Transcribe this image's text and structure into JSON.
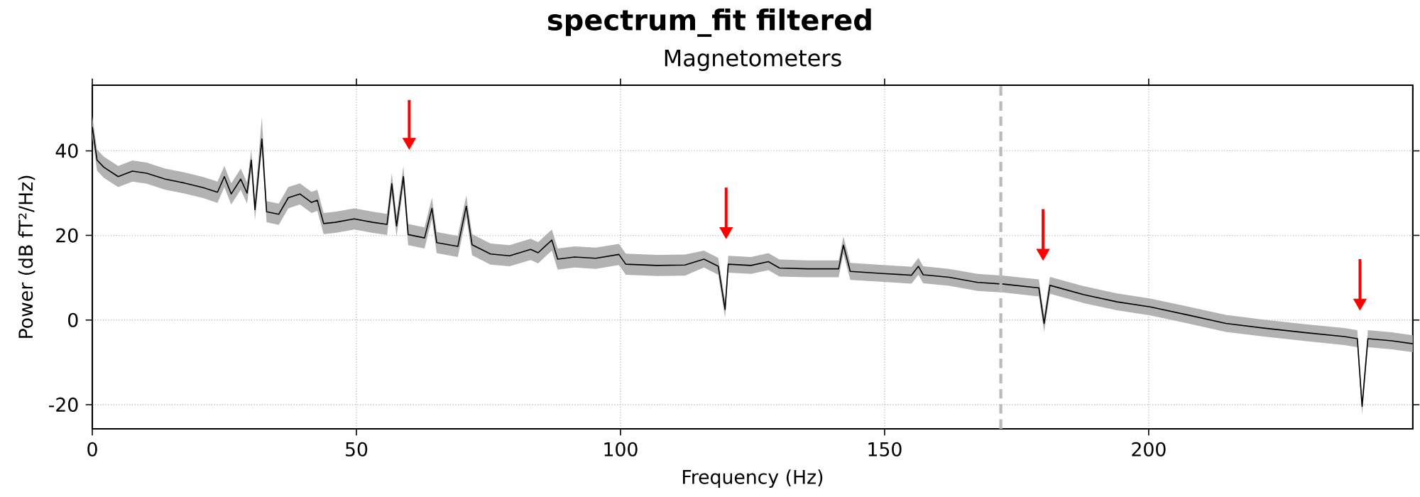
{
  "chart_data": {
    "type": "line",
    "title": "spectrum_fit filtered",
    "subtitle": "Magnetometers",
    "xlabel": "Frequency (Hz)",
    "ylabel": "Power (dB fT²/Hz)",
    "xlim": [
      0,
      250
    ],
    "ylim": [
      -25.7,
      55.5
    ],
    "xticks": [
      0,
      50,
      100,
      150,
      200
    ],
    "yticks": [
      -20,
      0,
      20,
      40
    ],
    "grid": true,
    "series": [
      {
        "color": "#000000",
        "x": [
          0,
          0.9,
          2.2,
          4.9,
          7.6,
          10.3,
          13.8,
          17.4,
          21,
          23.7,
          25,
          26.3,
          28.1,
          29.3,
          30.1,
          30.8,
          32.1,
          33,
          35.3,
          37.1,
          39.3,
          41.5,
          42.6,
          43.8,
          46,
          49.6,
          53.1,
          55.8,
          56.7,
          57.6,
          58.9,
          59.8,
          62.9,
          64.3,
          65.2,
          69.2,
          70.8,
          71.9,
          75.4,
          79,
          83,
          84.4,
          87,
          88.1,
          91.3,
          95.3,
          99.7,
          101,
          106.9,
          112.2,
          115.8,
          118.5,
          119.8,
          120.4,
          124.7,
          128,
          130.1,
          135.4,
          141.3,
          142.2,
          143.5,
          149.7,
          155.1,
          156.4,
          157.3,
          162.2,
          167.6,
          172.5,
          179.2,
          180.2,
          181.3,
          187.7,
          194,
          200.3,
          207.4,
          214.6,
          221.8,
          229.8,
          237,
          239.5,
          240.4,
          241.5,
          246,
          250
        ],
        "values": [
          45.6,
          37.8,
          36.1,
          33.9,
          35.2,
          34.7,
          33.3,
          32.4,
          31.3,
          30.2,
          33.9,
          29.8,
          33.3,
          30,
          37.8,
          26.1,
          42.8,
          25.6,
          25,
          28.9,
          29.8,
          27.8,
          28.3,
          22.8,
          23.1,
          23.9,
          23.1,
          22.6,
          32.2,
          22.2,
          33.9,
          20.2,
          19.4,
          26.4,
          18.3,
          17.4,
          26.9,
          17.8,
          15.6,
          15.2,
          16.7,
          15.9,
          18.9,
          14.4,
          14.9,
          14.6,
          15.5,
          13.2,
          12.9,
          13,
          14.4,
          12.7,
          2.5,
          13.2,
          12.9,
          13.8,
          12.3,
          12.1,
          12.1,
          17.7,
          11.5,
          11,
          10.6,
          12.7,
          10.7,
          10.1,
          8.9,
          8.5,
          7.6,
          -0.8,
          8.2,
          6,
          4.3,
          3.1,
          1.2,
          -0.8,
          -1.9,
          -3,
          -3.9,
          -4.4,
          -20.4,
          -4.4,
          -4.9,
          -5.6
        ],
        "upper": [
          48.1,
          40.3,
          38.6,
          36.4,
          37.7,
          37.2,
          35.8,
          34.9,
          33.8,
          32.7,
          36.4,
          32.3,
          35.8,
          32.5,
          40.3,
          28.6,
          48,
          28.1,
          27.5,
          31.4,
          32.3,
          30.3,
          30.8,
          25.3,
          25.6,
          26.4,
          25.6,
          25.1,
          34.7,
          24.7,
          36.4,
          22.7,
          21.9,
          28.9,
          20.8,
          19.9,
          29.4,
          20.3,
          18.1,
          17.7,
          19.2,
          18.4,
          21.4,
          16.9,
          17.4,
          17.1,
          18,
          15.7,
          15.4,
          15.5,
          16.4,
          14.7,
          4.5,
          15.2,
          14.9,
          15.8,
          14.3,
          14.1,
          14.1,
          19.7,
          13.5,
          13,
          12.6,
          14.7,
          12.7,
          12.1,
          10.9,
          10.5,
          9.6,
          1.2,
          10.2,
          8,
          6.3,
          5.1,
          3.2,
          1.2,
          0.1,
          -1,
          -1.9,
          -2.4,
          -18.4,
          -2.4,
          -2.9,
          -3.6
        ],
        "lower": [
          43.1,
          35.3,
          33.6,
          31.4,
          32.7,
          32.2,
          30.8,
          29.9,
          28.8,
          27.7,
          31.4,
          27.3,
          30.8,
          27.5,
          35.3,
          23.6,
          40.3,
          23.1,
          22.5,
          26.4,
          27.3,
          25.3,
          25.8,
          20.3,
          20.6,
          21.4,
          20.6,
          20.1,
          29.7,
          19.7,
          31.4,
          17.7,
          16.9,
          23.9,
          15.8,
          14.9,
          24.4,
          15.3,
          13.1,
          12.7,
          14.2,
          13.4,
          16.4,
          11.9,
          12.4,
          12.1,
          13,
          10.7,
          10.4,
          10.5,
          12.4,
          10.7,
          0.5,
          11.2,
          10.9,
          11.8,
          10.3,
          10.1,
          10.1,
          15.7,
          9.5,
          9,
          8.6,
          10.7,
          8.7,
          8.1,
          6.9,
          6.5,
          5.6,
          -2.8,
          6.2,
          4,
          2.3,
          1.1,
          -0.8,
          -2.8,
          -3.9,
          -5,
          -5.9,
          -6.4,
          -22.4,
          -6.4,
          -6.9,
          -7.6
        ]
      },
      {
        "type": "scatter",
        "color": "#ff0000",
        "marker": "triangle",
        "x": [
          60,
          120,
          180,
          240
        ],
        "values": [
          42.1,
          21,
          15.9,
          4.1
        ],
        "errors": [
          [
            42.1,
            52
          ],
          [
            21,
            31.3
          ],
          [
            15.9,
            26.2
          ],
          [
            4.1,
            14.4
          ]
        ]
      }
    ],
    "ref_lines": [
      {
        "axis": "x",
        "value": 172,
        "color": "#bbbbbb",
        "line_style": "dashed"
      }
    ]
  }
}
